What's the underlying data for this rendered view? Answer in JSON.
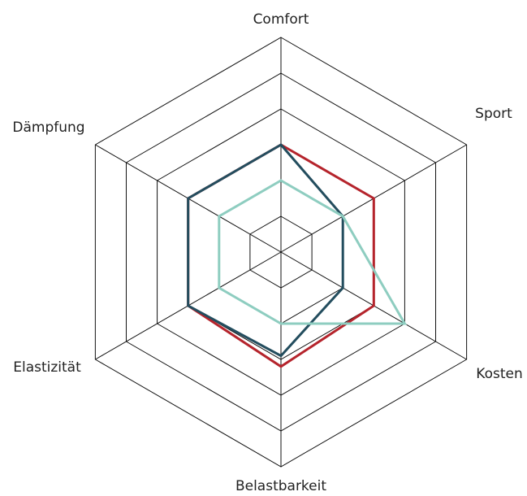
{
  "chart_data": {
    "type": "radar",
    "categories": [
      "Comfort",
      "Sport",
      "Kosten",
      "Belastbarkeit",
      "Elastizität",
      "Dämpfung"
    ],
    "rlim": [
      0,
      6
    ],
    "rticks": [
      1,
      2,
      3,
      4,
      5,
      6
    ],
    "grid": true,
    "series": [
      {
        "color": "#b5242c",
        "values": [
          3,
          3,
          3,
          3.2,
          3,
          3
        ]
      },
      {
        "color": "#234d5e",
        "values": [
          3,
          2,
          2,
          2.9,
          3,
          3
        ]
      },
      {
        "color": "#8ecdc0",
        "values": [
          2,
          2,
          4,
          2,
          2,
          2
        ]
      }
    ]
  }
}
